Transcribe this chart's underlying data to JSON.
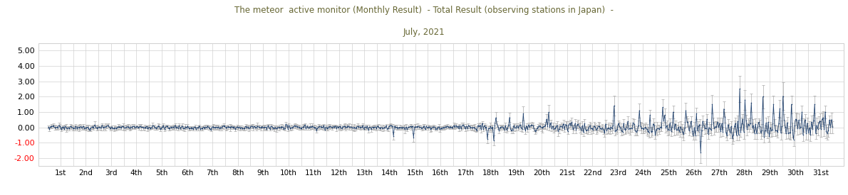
{
  "title_line1": "The meteor  active monitor (Monthly Result)  - Total Result (observing stations in Japan)  -",
  "title_line2": "July, 2021",
  "xlabels": [
    "1st",
    "2nd",
    "3rd",
    "4th",
    "5th",
    "6th",
    "7th",
    "8th",
    "9th",
    "10th",
    "11th",
    "12th",
    "13th",
    "14th",
    "15th",
    "16th",
    "17th",
    "18th",
    "19th",
    "20th",
    "21st",
    "22nd",
    "23rd",
    "24th",
    "25th",
    "26th",
    "27th",
    "28th",
    "29th",
    "30th",
    "31st"
  ],
  "ylim": [
    -2.5,
    5.5
  ],
  "yticks": [
    -2.0,
    -1.0,
    0.0,
    1.0,
    2.0,
    3.0,
    4.0,
    5.0
  ],
  "ytick_labels": [
    "-2.00",
    "-1.00",
    "0.00",
    "1.00",
    "2.00",
    "3.00",
    "4.00",
    "5.00"
  ],
  "line_color": "#1c3f6e",
  "error_color": "#b0b0b0",
  "background_color": "#ffffff",
  "grid_color": "#d0d0d0",
  "title_color": "#666633",
  "num_points_per_day": 24,
  "num_days": 31,
  "seed": 17
}
